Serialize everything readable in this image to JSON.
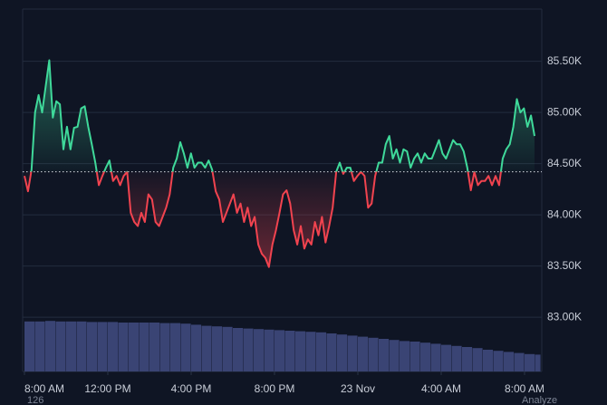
{
  "chart_data": {
    "type": "line",
    "x": [
      0,
      0.17,
      0.34,
      0.51,
      0.68,
      0.85,
      1.02,
      1.19,
      1.36,
      1.53,
      1.7,
      1.87,
      2.04,
      2.21,
      2.38,
      2.55,
      2.72,
      2.89,
      3.06,
      3.23,
      3.4,
      3.57,
      3.74,
      3.91,
      4.08,
      4.25,
      4.42,
      4.59,
      4.76,
      4.93,
      5.1,
      5.27,
      5.44,
      5.61,
      5.78,
      5.95,
      6.12,
      6.29,
      6.46,
      6.63,
      6.8,
      6.97,
      7.14,
      7.31,
      7.48,
      7.65,
      7.82,
      7.99,
      8.16,
      8.33,
      8.5,
      8.67,
      8.84,
      9.01,
      9.18,
      9.35,
      9.52,
      9.69,
      9.86,
      10.03,
      10.2,
      10.37,
      10.54,
      10.71,
      10.88,
      11.05,
      11.22,
      11.39,
      11.56,
      11.73,
      11.9,
      12.07,
      12.24,
      12.41,
      12.58,
      12.75,
      12.92,
      13.09,
      13.26,
      13.43,
      13.6,
      13.77,
      13.94,
      14.11,
      14.28,
      14.45,
      14.62,
      14.79,
      14.96,
      15.13,
      15.3,
      15.47,
      15.64,
      15.81,
      15.98,
      16.15,
      16.32,
      16.49,
      16.66,
      16.83,
      17,
      17.17,
      17.34,
      17.51,
      17.68,
      17.85,
      18.02,
      18.19,
      18.36,
      18.53,
      18.7,
      18.87,
      19.04,
      19.21,
      19.38,
      19.55,
      19.72,
      19.89,
      20.06,
      20.23,
      20.4,
      20.57,
      20.74,
      20.91,
      21.08,
      21.25,
      21.42,
      21.59,
      21.76,
      21.93,
      22.1,
      22.27,
      22.44,
      22.61,
      22.78,
      22.95,
      23.12,
      23.29,
      23.46,
      23.63,
      23.8,
      23.97,
      24.14,
      24.31,
      24.48
    ],
    "values": [
      84380,
      84230,
      84440,
      85000,
      85170,
      85000,
      85260,
      85510,
      84950,
      85110,
      85080,
      84640,
      84860,
      84640,
      84850,
      84860,
      85040,
      85060,
      84860,
      84690,
      84510,
      84290,
      84380,
      84460,
      84530,
      84330,
      84380,
      84290,
      84380,
      84420,
      84020,
      83930,
      83890,
      84020,
      83930,
      84200,
      84150,
      83930,
      83890,
      83980,
      84070,
      84200,
      84460,
      84550,
      84710,
      84600,
      84460,
      84600,
      84460,
      84510,
      84510,
      84460,
      84530,
      84440,
      84230,
      84150,
      83930,
      84020,
      84110,
      84200,
      84020,
      84110,
      83930,
      84070,
      83890,
      83980,
      83710,
      83620,
      83580,
      83490,
      83710,
      83850,
      84020,
      84200,
      84240,
      84110,
      83850,
      83710,
      83890,
      83670,
      83760,
      83710,
      83930,
      83800,
      83980,
      83730,
      83890,
      84070,
      84420,
      84510,
      84400,
      84460,
      84460,
      84330,
      84380,
      84420,
      84380,
      84070,
      84110,
      84380,
      84510,
      84510,
      84690,
      84770,
      84550,
      84640,
      84510,
      84640,
      84620,
      84460,
      84550,
      84600,
      84510,
      84600,
      84550,
      84550,
      84640,
      84730,
      84600,
      84550,
      84640,
      84730,
      84690,
      84690,
      84620,
      84460,
      84240,
      84420,
      84290,
      84330,
      84330,
      84380,
      84290,
      84380,
      84290,
      84550,
      84640,
      84690,
      84860,
      85130,
      85000,
      85040,
      84860,
      84970,
      84770
    ],
    "baseline": 84420,
    "up_color": "#3fd99a",
    "down_color": "#f1434f",
    "volume": {
      "color": "#3a4474",
      "x": [
        0,
        0.5,
        1,
        1.5,
        2,
        2.5,
        3,
        3.5,
        4,
        4.5,
        5,
        5.5,
        6,
        6.5,
        7,
        7.5,
        8,
        8.5,
        9,
        9.5,
        10,
        10.5,
        11,
        11.5,
        12,
        12.5,
        13,
        13.5,
        14,
        14.5,
        15,
        15.5,
        16,
        16.5,
        17,
        17.5,
        18,
        18.5,
        19,
        19.5,
        20,
        20.5,
        21,
        21.5,
        22,
        22.5,
        23,
        23.5,
        24,
        24.5
      ],
      "values": [
        92,
        92,
        93,
        92,
        92,
        92,
        91,
        91,
        91,
        90,
        90,
        90,
        90,
        89,
        89,
        88,
        86,
        84,
        83,
        82,
        80,
        79,
        78,
        77,
        76,
        75,
        74,
        73,
        72,
        70,
        68,
        66,
        64,
        62,
        60,
        58,
        56,
        55,
        53,
        51,
        49,
        47,
        45,
        43,
        40,
        38,
        36,
        34,
        32,
        31
      ],
      "vlim": [
        0,
        100
      ]
    },
    "xlim": [
      0,
      24.83
    ],
    "xticks": [
      {
        "value": 0,
        "label": "8:00 AM"
      },
      {
        "value": 4,
        "label": "12:00 PM"
      },
      {
        "value": 8,
        "label": "4:00 PM"
      },
      {
        "value": 12,
        "label": "8:00 PM"
      },
      {
        "value": 16,
        "label": "23 Nov"
      },
      {
        "value": 20,
        "label": "4:00 AM"
      },
      {
        "value": 24,
        "label": "8:00 AM"
      }
    ],
    "ylim": [
      82470,
      86010
    ],
    "yticks": [
      {
        "value": 83000,
        "label": "83.00K"
      },
      {
        "value": 83500,
        "label": "83.50K"
      },
      {
        "value": 84000,
        "label": "84.00K"
      },
      {
        "value": 84500,
        "label": "84.50K"
      },
      {
        "value": 85000,
        "label": "85.00K"
      },
      {
        "value": 85500,
        "label": "85.50K"
      }
    ],
    "grid": true,
    "footer_left": "126",
    "footer_right": "Analyze"
  }
}
